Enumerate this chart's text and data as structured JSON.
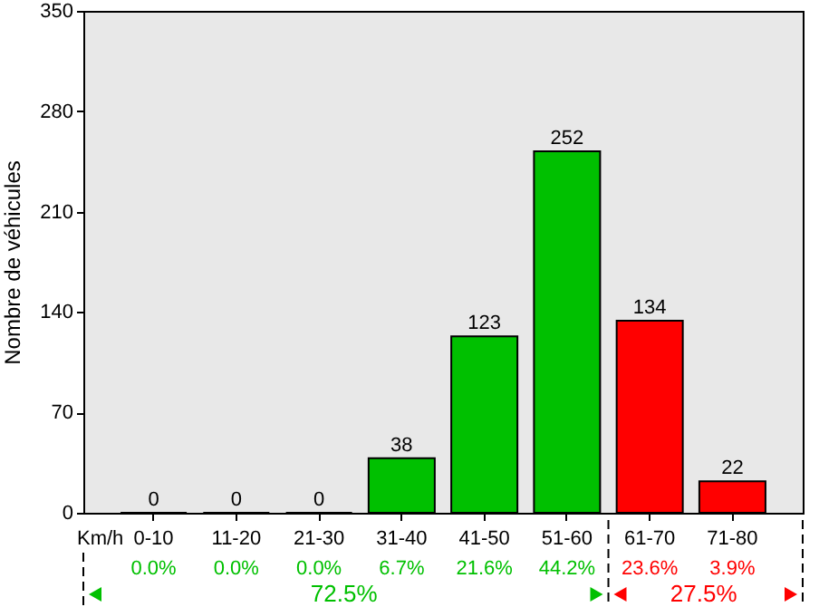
{
  "chart_data": {
    "type": "bar",
    "xlabel": "Km/h",
    "ylabel": "Nombre de véhicules",
    "categories": [
      "0-10",
      "11-20",
      "21-30",
      "31-40",
      "41-50",
      "51-60",
      "61-70",
      "71-80"
    ],
    "values": [
      0,
      0,
      0,
      38,
      123,
      252,
      134,
      22
    ],
    "colors": [
      "#00c000",
      "#00c000",
      "#00c000",
      "#00c000",
      "#00c000",
      "#00c000",
      "#ff0000",
      "#ff0000"
    ],
    "ylim": [
      0,
      350
    ],
    "yticks": [
      0,
      70,
      140,
      210,
      280,
      350
    ],
    "grid": false,
    "data_labels": true,
    "annotations": [
      "0.0%",
      "0.0%",
      "0.0%",
      "6.7%",
      "21.6%",
      "44.2%",
      "23.6%",
      "3.9%",
      "72.5%",
      "27.5%"
    ]
  }
}
